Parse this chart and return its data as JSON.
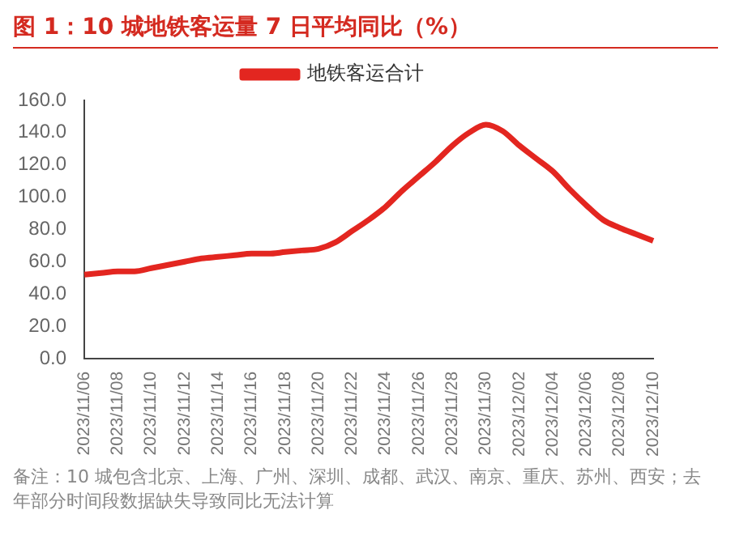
{
  "chart_data": {
    "type": "line",
    "title": "图 1：10 城地铁客运量 7 日平均同比（%）",
    "categories": [
      "2023/11/06",
      null,
      "2023/11/08",
      null,
      "2023/11/10",
      null,
      "2023/11/12",
      null,
      "2023/11/14",
      null,
      "2023/11/16",
      null,
      "2023/11/18",
      null,
      "2023/11/20",
      null,
      "2023/11/22",
      null,
      "2023/11/24",
      null,
      "2023/11/26",
      null,
      "2023/11/28",
      null,
      "2023/11/30",
      null,
      "2023/12/02",
      null,
      "2023/12/04",
      null,
      "2023/12/06",
      null,
      "2023/12/08",
      null,
      "2023/12/10"
    ],
    "series": [
      {
        "name": "地铁客运合计",
        "color": "#e32620",
        "values": [
          52,
          53,
          54,
          54,
          56,
          58,
          60,
          62,
          63,
          64,
          65,
          65,
          66,
          67,
          68,
          72,
          79,
          86,
          94,
          104,
          113,
          122,
          132,
          140,
          145,
          141,
          132,
          124,
          116,
          105,
          95,
          86,
          81,
          77,
          73
        ]
      }
    ],
    "ylim": [
      0,
      160
    ],
    "yticks": [
      {
        "value": 0,
        "label": "0.0"
      },
      {
        "value": 20,
        "label": "20.0"
      },
      {
        "value": 40,
        "label": "40.0"
      },
      {
        "value": 60,
        "label": "60.0"
      },
      {
        "value": 80,
        "label": "80.0"
      },
      {
        "value": 100,
        "label": "100.0"
      },
      {
        "value": 120,
        "label": "120.0"
      },
      {
        "value": 140,
        "label": "140.0"
      },
      {
        "value": 160,
        "label": "160.0"
      }
    ],
    "grid": false,
    "legend": "top",
    "marker": "none",
    "line_style": "solid",
    "annotations": [
      "备注：10 城包含北京、上海、广州、深圳、成都、武汉、南京、重庆、苏州、西安；去年部分时间段数据缺失导致同比无法计算"
    ]
  }
}
